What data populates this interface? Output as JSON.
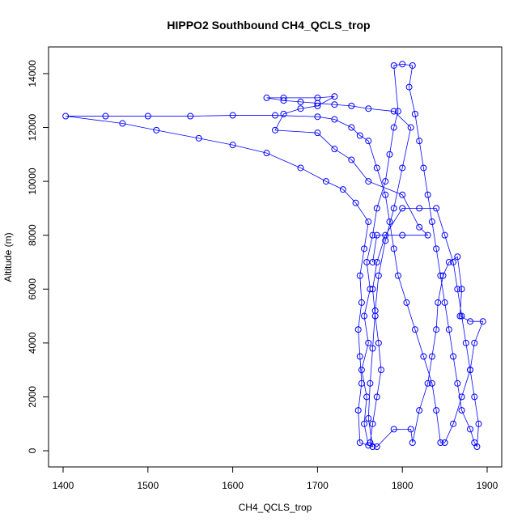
{
  "chart_data": {
    "type": "scatter",
    "style": "points-and-lines",
    "title": "HIPPO2 Southbound CH4_QCLS_trop",
    "xlabel": "CH4_QCLS_trop",
    "ylabel": "Altitude (m)",
    "xlim": [
      1390,
      1910
    ],
    "ylim": [
      -600,
      15000
    ],
    "xticks": [
      1400,
      1500,
      1600,
      1700,
      1800,
      1900
    ],
    "yticks": [
      0,
      2000,
      4000,
      6000,
      8000,
      10000,
      12000,
      14000
    ],
    "grid": false,
    "color": "#0000FF",
    "points": [
      [
        1760,
        200
      ],
      [
        1755,
        1000
      ],
      [
        1758,
        2000
      ],
      [
        1752,
        3000
      ],
      [
        1760,
        4000
      ],
      [
        1755,
        5000
      ],
      [
        1762,
        6000
      ],
      [
        1758,
        7000
      ],
      [
        1765,
        8000
      ],
      [
        1770,
        9000
      ],
      [
        1780,
        10000
      ],
      [
        1785,
        11000
      ],
      [
        1790,
        12000
      ],
      [
        1795,
        12600
      ],
      [
        1790,
        14300
      ],
      [
        1800,
        14350
      ],
      [
        1812,
        14300
      ],
      [
        1808,
        13500
      ],
      [
        1815,
        12500
      ],
      [
        1820,
        11500
      ],
      [
        1825,
        10500
      ],
      [
        1830,
        9500
      ],
      [
        1835,
        8500
      ],
      [
        1840,
        7500
      ],
      [
        1845,
        6500
      ],
      [
        1850,
        5500
      ],
      [
        1855,
        4500
      ],
      [
        1860,
        3500
      ],
      [
        1865,
        2500
      ],
      [
        1870,
        1500
      ],
      [
        1880,
        800
      ],
      [
        1885,
        300
      ],
      [
        1888,
        150
      ],
      [
        1890,
        1000
      ],
      [
        1885,
        2000
      ],
      [
        1880,
        3000
      ],
      [
        1875,
        4000
      ],
      [
        1870,
        5000
      ],
      [
        1865,
        6000
      ],
      [
        1860,
        7000
      ],
      [
        1850,
        8000
      ],
      [
        1840,
        9000
      ],
      [
        1820,
        9000
      ],
      [
        1800,
        9000
      ],
      [
        1780,
        8000
      ],
      [
        1770,
        7000
      ],
      [
        1765,
        6000
      ],
      [
        1768,
        5000
      ],
      [
        1772,
        4000
      ],
      [
        1775,
        3000
      ],
      [
        1770,
        2000
      ],
      [
        1765,
        1000
      ],
      [
        1762,
        300
      ],
      [
        1770,
        150
      ],
      [
        1790,
        800
      ],
      [
        1810,
        800
      ],
      [
        1812,
        300
      ],
      [
        1820,
        1500
      ],
      [
        1830,
        2500
      ],
      [
        1835,
        3500
      ],
      [
        1840,
        4500
      ],
      [
        1842,
        5500
      ],
      [
        1848,
        6500
      ],
      [
        1855,
        7000
      ],
      [
        1865,
        7200
      ],
      [
        1870,
        6000
      ],
      [
        1868,
        5000
      ],
      [
        1880,
        4800
      ],
      [
        1895,
        4800
      ],
      [
        1885,
        4000
      ],
      [
        1880,
        3000
      ],
      [
        1870,
        2000
      ],
      [
        1860,
        1000
      ],
      [
        1850,
        300
      ],
      [
        1845,
        300
      ],
      [
        1840,
        1500
      ],
      [
        1835,
        2500
      ],
      [
        1825,
        3500
      ],
      [
        1815,
        4500
      ],
      [
        1805,
        5500
      ],
      [
        1795,
        6500
      ],
      [
        1790,
        7500
      ],
      [
        1785,
        8500
      ],
      [
        1780,
        9500
      ],
      [
        1770,
        10500
      ],
      [
        1760,
        11500
      ],
      [
        1750,
        11700
      ],
      [
        1740,
        12000
      ],
      [
        1720,
        12300
      ],
      [
        1700,
        12400
      ],
      [
        1650,
        12450
      ],
      [
        1600,
        12450
      ],
      [
        1550,
        12420
      ],
      [
        1500,
        12420
      ],
      [
        1450,
        12420
      ],
      [
        1403,
        12420
      ],
      [
        1470,
        12150
      ],
      [
        1510,
        11900
      ],
      [
        1560,
        11600
      ],
      [
        1600,
        11350
      ],
      [
        1640,
        11050
      ],
      [
        1680,
        10500
      ],
      [
        1710,
        10000
      ],
      [
        1730,
        9700
      ],
      [
        1745,
        9200
      ],
      [
        1760,
        8500
      ],
      [
        1755,
        7500
      ],
      [
        1750,
        6500
      ],
      [
        1752,
        5500
      ],
      [
        1748,
        4500
      ],
      [
        1750,
        3500
      ],
      [
        1752,
        2500
      ],
      [
        1748,
        1500
      ],
      [
        1750,
        300
      ],
      [
        1765,
        150
      ],
      [
        1760,
        1200
      ],
      [
        1762,
        2500
      ],
      [
        1765,
        3800
      ],
      [
        1768,
        5200
      ],
      [
        1772,
        6500
      ],
      [
        1780,
        7800
      ],
      [
        1790,
        9000
      ],
      [
        1800,
        10500
      ],
      [
        1810,
        12000
      ],
      [
        1790,
        12600
      ],
      [
        1760,
        12700
      ],
      [
        1740,
        12800
      ],
      [
        1720,
        12850
      ],
      [
        1700,
        12900
      ],
      [
        1680,
        12950
      ],
      [
        1660,
        13000
      ],
      [
        1640,
        13100
      ],
      [
        1660,
        13100
      ],
      [
        1700,
        13100
      ],
      [
        1720,
        13150
      ],
      [
        1700,
        12800
      ],
      [
        1680,
        12700
      ],
      [
        1660,
        12500
      ],
      [
        1650,
        11900
      ],
      [
        1700,
        11800
      ],
      [
        1720,
        11200
      ],
      [
        1740,
        10800
      ],
      [
        1760,
        10000
      ],
      [
        1800,
        9500
      ],
      [
        1820,
        8300
      ],
      [
        1830,
        8000
      ],
      [
        1800,
        8000
      ],
      [
        1770,
        8000
      ],
      [
        1765,
        7000
      ]
    ]
  }
}
